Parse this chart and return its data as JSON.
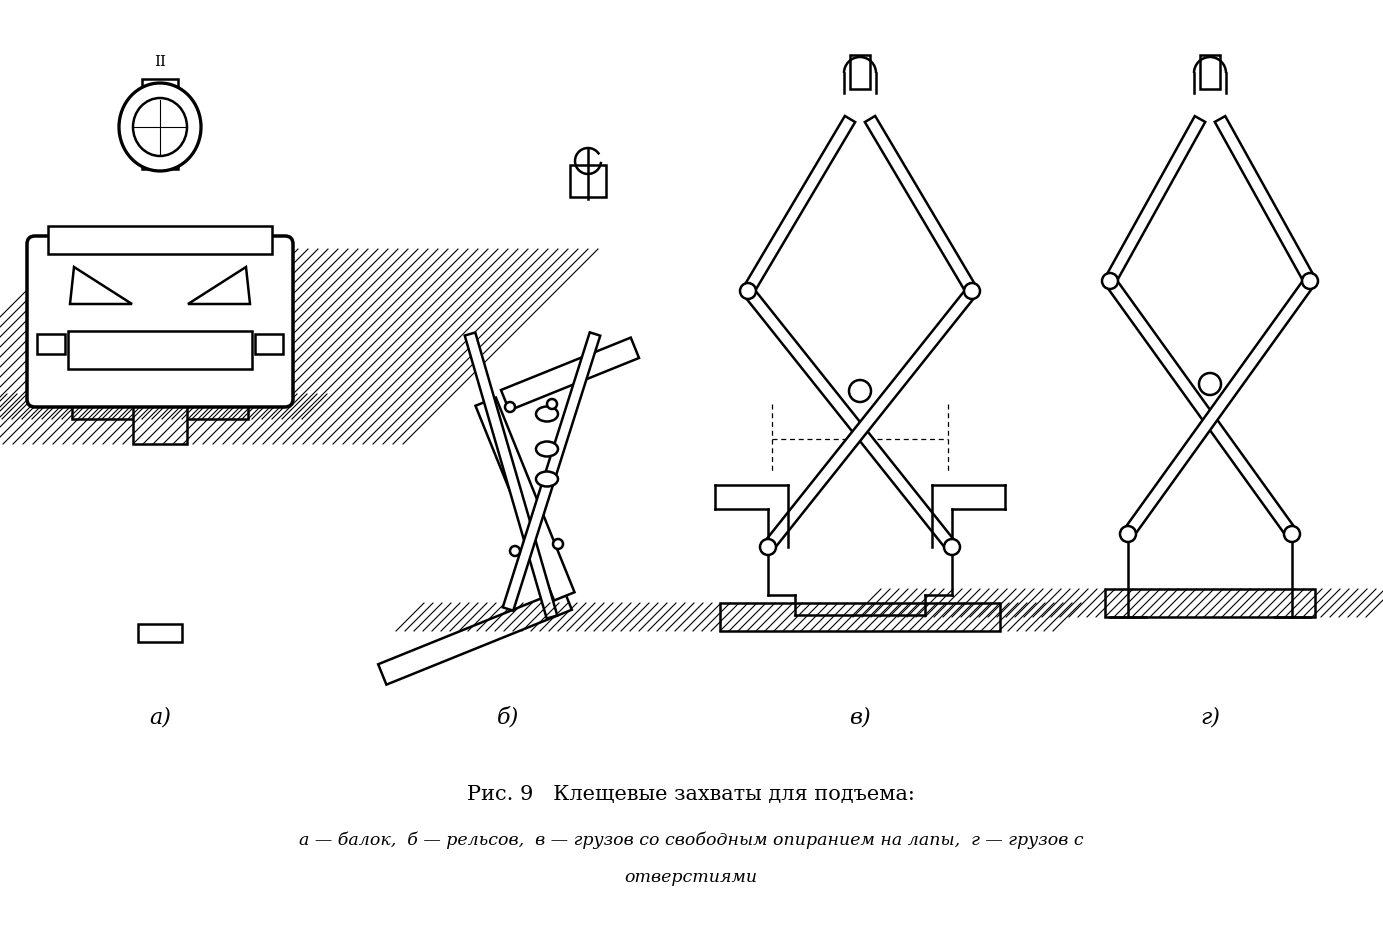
{
  "title_line1": "Рис. 9   Клещевые захваты для подъема:",
  "title_line2": "а — балок,  б — рельсов,  в — грузов со свободным опиранием на лапы,  г — грузов с",
  "title_line3": "отверстиями",
  "label_a": "а)",
  "label_b": "б)",
  "label_v": "в)",
  "label_g": "г)",
  "bg_color": "#ffffff",
  "fig_width": 13.83,
  "fig_height": 9.53,
  "dpi": 100
}
